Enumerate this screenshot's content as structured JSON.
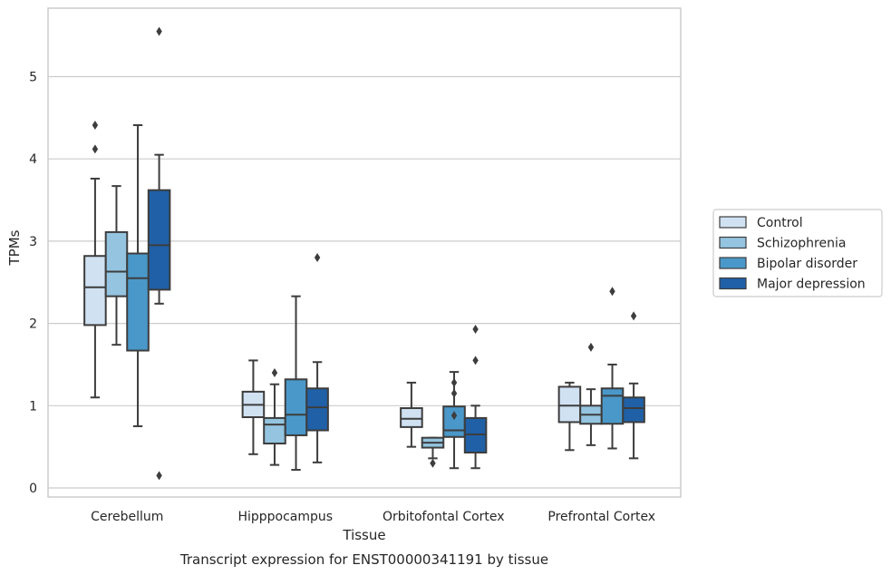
{
  "chart_data": {
    "type": "boxplot",
    "caption": "Transcript expression for ENST00000341191 by tissue",
    "xlabel": "Tissue",
    "ylabel": "TPMs",
    "ylim": [
      -0.1,
      5.85
    ],
    "yticks": [
      0,
      1,
      2,
      3,
      4,
      5
    ],
    "grid": "horizontal",
    "legend_position": "right",
    "categories": [
      "Cerebellum",
      "Hipppocampus",
      "Orbitofontal Cortex",
      "Prefrontal Cortex"
    ],
    "series": [
      {
        "name": "Control",
        "color": "#d0e1f2",
        "boxes": [
          {
            "whislo": 1.1,
            "q1": 1.98,
            "med": 2.44,
            "q3": 2.82,
            "whishi": 3.76,
            "fliers": [
              4.12,
              4.41
            ]
          },
          {
            "whislo": 0.41,
            "q1": 0.86,
            "med": 1.01,
            "q3": 1.17,
            "whishi": 1.55,
            "fliers": []
          },
          {
            "whislo": 0.5,
            "q1": 0.74,
            "med": 0.84,
            "q3": 0.97,
            "whishi": 1.28,
            "fliers": []
          },
          {
            "whislo": 0.46,
            "q1": 0.8,
            "med": 1.0,
            "q3": 1.23,
            "whishi": 1.28,
            "fliers": []
          }
        ]
      },
      {
        "name": "Schizophrenia",
        "color": "#94c4df",
        "boxes": [
          {
            "whislo": 1.74,
            "q1": 2.33,
            "med": 2.63,
            "q3": 3.11,
            "whishi": 3.67,
            "fliers": []
          },
          {
            "whislo": 0.28,
            "q1": 0.54,
            "med": 0.77,
            "q3": 0.85,
            "whishi": 1.26,
            "fliers": [
              1.4
            ]
          },
          {
            "whislo": 0.36,
            "q1": 0.49,
            "med": 0.55,
            "q3": 0.61,
            "whishi": 0.61,
            "fliers": [
              0.3
            ]
          },
          {
            "whislo": 0.52,
            "q1": 0.78,
            "med": 0.89,
            "q3": 1.0,
            "whishi": 1.2,
            "fliers": [
              1.71
            ]
          }
        ]
      },
      {
        "name": "Bipolar disorder",
        "color": "#4a98c9",
        "boxes": [
          {
            "whislo": 0.75,
            "q1": 1.67,
            "med": 2.55,
            "q3": 2.85,
            "whishi": 4.41,
            "fliers": []
          },
          {
            "whislo": 0.22,
            "q1": 0.64,
            "med": 0.89,
            "q3": 1.32,
            "whishi": 2.33,
            "fliers": []
          },
          {
            "whislo": 0.24,
            "q1": 0.62,
            "med": 0.7,
            "q3": 0.99,
            "whishi": 1.41,
            "fliers": [
              0.88,
              1.15,
              1.28
            ]
          },
          {
            "whislo": 0.48,
            "q1": 0.78,
            "med": 1.12,
            "q3": 1.21,
            "whishi": 1.5,
            "fliers": [
              2.39
            ]
          }
        ]
      },
      {
        "name": "Major depression",
        "color": "#2060a7",
        "boxes": [
          {
            "whislo": 2.24,
            "q1": 2.41,
            "med": 2.95,
            "q3": 3.62,
            "whishi": 4.05,
            "fliers": [
              0.15,
              5.55
            ]
          },
          {
            "whislo": 0.31,
            "q1": 0.7,
            "med": 0.98,
            "q3": 1.21,
            "whishi": 1.53,
            "fliers": [
              2.8
            ]
          },
          {
            "whislo": 0.24,
            "q1": 0.43,
            "med": 0.65,
            "q3": 0.85,
            "whishi": 1.0,
            "fliers": [
              1.55,
              1.93
            ]
          },
          {
            "whislo": 0.36,
            "q1": 0.8,
            "med": 0.97,
            "q3": 1.1,
            "whishi": 1.27,
            "fliers": [
              2.09
            ]
          }
        ]
      }
    ]
  }
}
